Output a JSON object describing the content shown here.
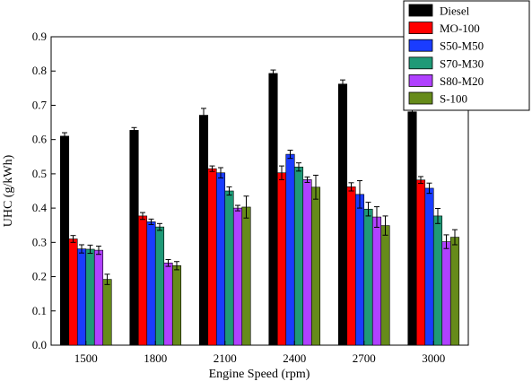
{
  "chart_data": {
    "type": "bar",
    "xlabel": "Engine Speed (rpm)",
    "ylabel": "UHC (g/kWh)",
    "categories": [
      "1500",
      "1800",
      "2100",
      "2400",
      "2700",
      "3000"
    ],
    "ylim": [
      0,
      0.9
    ],
    "yticks": [
      "0.0",
      "0.1",
      "0.2",
      "0.3",
      "0.4",
      "0.5",
      "0.6",
      "0.7",
      "0.8",
      "0.9"
    ],
    "grid": false,
    "legend_position": "top-right",
    "series": [
      {
        "name": "Diesel",
        "color": "#000000",
        "values": [
          0.61,
          0.627,
          0.671,
          0.793,
          0.762,
          0.681
        ],
        "errors": [
          0.01,
          0.008,
          0.02,
          0.01,
          0.012,
          0.012
        ]
      },
      {
        "name": "MO-100",
        "color": "#ff0000",
        "values": [
          0.31,
          0.377,
          0.515,
          0.503,
          0.462,
          0.482
        ],
        "errors": [
          0.01,
          0.01,
          0.008,
          0.02,
          0.012,
          0.01
        ]
      },
      {
        "name": "S50-M50",
        "color": "#1a3cff",
        "values": [
          0.281,
          0.36,
          0.503,
          0.557,
          0.44,
          0.458
        ],
        "errors": [
          0.012,
          0.008,
          0.015,
          0.012,
          0.04,
          0.015
        ]
      },
      {
        "name": "S70-M30",
        "color": "#1f9a77",
        "values": [
          0.28,
          0.345,
          0.45,
          0.52,
          0.397,
          0.377
        ],
        "errors": [
          0.012,
          0.01,
          0.012,
          0.012,
          0.02,
          0.022
        ]
      },
      {
        "name": "S80-M20",
        "color": "#b041ff",
        "values": [
          0.277,
          0.24,
          0.4,
          0.483,
          0.374,
          0.302
        ],
        "errors": [
          0.012,
          0.01,
          0.008,
          0.008,
          0.03,
          0.02
        ]
      },
      {
        "name": "S-100",
        "color": "#668b1a",
        "values": [
          0.192,
          0.232,
          0.403,
          0.461,
          0.349,
          0.315
        ],
        "errors": [
          0.015,
          0.012,
          0.032,
          0.035,
          0.028,
          0.022
        ]
      }
    ]
  }
}
